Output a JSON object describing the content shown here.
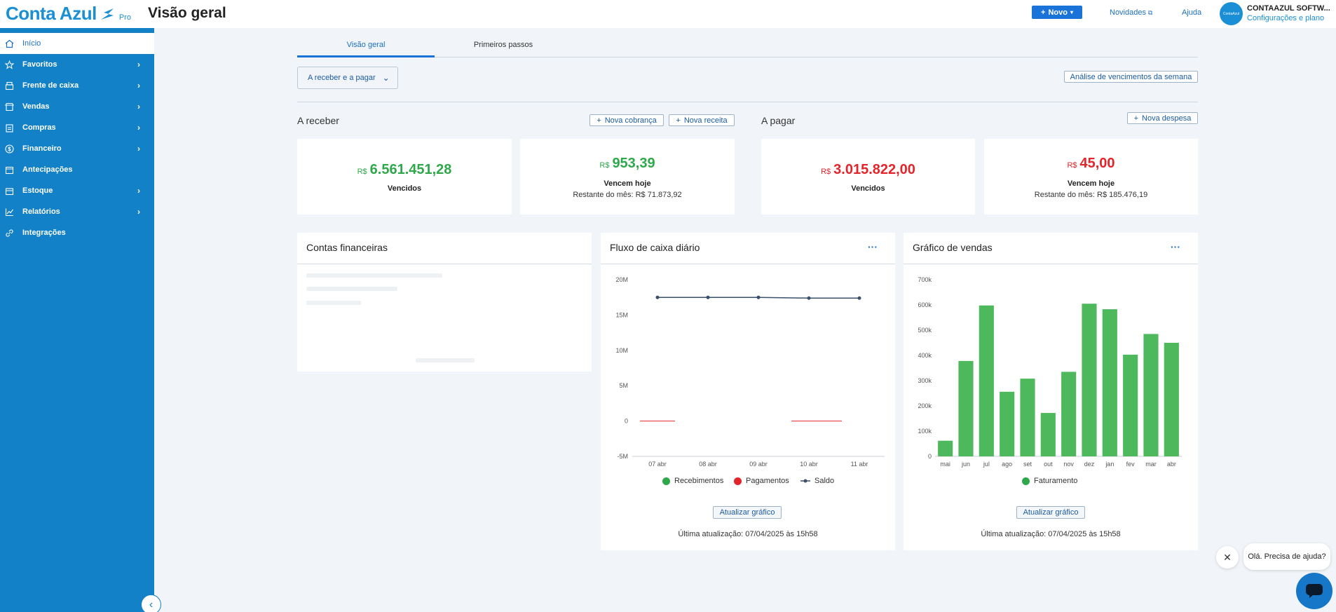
{
  "header": {
    "logo_text": "Conta Azul",
    "logo_badge": "Pro",
    "page_title": "Visão geral",
    "new_button": "Novo",
    "news_link": "Novidades",
    "help_link": "Ajuda",
    "avatar_text": "ContaAzul",
    "company_name": "CONTAAZUL SOFTW...",
    "company_settings": "Configurações e plano"
  },
  "sidebar": {
    "items": [
      {
        "label": "Início",
        "icon": "home-icon",
        "active": true
      },
      {
        "label": "Favoritos",
        "icon": "star-icon"
      },
      {
        "label": "Frente de caixa",
        "icon": "register-icon"
      },
      {
        "label": "Vendas",
        "icon": "store-icon"
      },
      {
        "label": "Compras",
        "icon": "clipboard-icon"
      },
      {
        "label": "Financeiro",
        "icon": "dollar-icon"
      },
      {
        "label": "Antecipações",
        "icon": "calendar-money-icon"
      },
      {
        "label": "Estoque",
        "icon": "box-icon"
      },
      {
        "label": "Relatórios",
        "icon": "chart-line-icon"
      },
      {
        "label": "Integrações",
        "icon": "link-icon"
      }
    ]
  },
  "tabs": [
    {
      "label": "Visão geral",
      "active": true
    },
    {
      "label": "Primeiros passos",
      "active": false
    }
  ],
  "filter": {
    "dropdown": "A receber e a pagar",
    "week_analysis": "Análise de vencimentos da semana"
  },
  "receivable": {
    "title": "A receber",
    "new_charge": "Nova cobrança",
    "new_revenue": "Nova receita",
    "overdue": {
      "currency": "R$",
      "amount": "6.561.451,28",
      "label": "Vencidos"
    },
    "today": {
      "currency": "R$",
      "amount": "953,39",
      "label": "Vencem hoje",
      "remaining": "Restante do mês: R$ 71.873,92"
    }
  },
  "payable": {
    "title": "A pagar",
    "new_expense": "Nova despesa",
    "overdue": {
      "currency": "R$",
      "amount": "3.015.822,00",
      "label": "Vencidos"
    },
    "today": {
      "currency": "R$",
      "amount": "45,00",
      "label": "Vencem hoje",
      "remaining": "Restante do mês: R$ 185.476,19"
    }
  },
  "accounts_panel": {
    "title": "Contas financeiras"
  },
  "cashflow_panel": {
    "title": "Fluxo de caixa diário",
    "more": "···",
    "legend": [
      "Recebimentos",
      "Pagamentos",
      "Saldo"
    ],
    "update_button": "Atualizar gráfico",
    "last_update": "Última atualização: 07/04/2025 às 15h58"
  },
  "sales_panel": {
    "title": "Gráfico de vendas",
    "more": "···",
    "legend": [
      "Faturamento"
    ],
    "update_button": "Atualizar gráfico",
    "last_update": "Última atualização: 07/04/2025 às 15h58"
  },
  "chat": {
    "message": "Olá. Precisa de ajuda?",
    "close": "✕"
  },
  "colors": {
    "brand": "#1381c8",
    "green": "#2ea84a",
    "red": "#e3242b",
    "saldo": "#3a4f6b"
  },
  "chart_data": [
    {
      "type": "line",
      "x": [
        "07 abr",
        "08 abr",
        "09 abr",
        "10 abr",
        "11 abr"
      ],
      "y_ticks": [
        "20M",
        "15M",
        "10M",
        "5M",
        "0",
        "-5M"
      ],
      "ylim": [
        -5,
        20
      ],
      "series": [
        {
          "name": "Recebimentos",
          "values": [
            0,
            0,
            0,
            0,
            0
          ]
        },
        {
          "name": "Pagamentos",
          "values": [
            0,
            null,
            null,
            0,
            0
          ]
        },
        {
          "name": "Saldo",
          "values": [
            17.5,
            17.5,
            17.5,
            17.4,
            17.4
          ]
        }
      ]
    },
    {
      "type": "bar",
      "categories": [
        "mai",
        "jun",
        "jul",
        "ago",
        "set",
        "out",
        "nov",
        "dez",
        "jan",
        "fev",
        "mar",
        "abr"
      ],
      "y_ticks": [
        "700k",
        "600k",
        "500k",
        "400k",
        "300k",
        "200k",
        "100k",
        "0"
      ],
      "ylim": [
        0,
        700
      ],
      "series": [
        {
          "name": "Faturamento",
          "values": [
            62,
            378,
            598,
            256,
            308,
            172,
            335,
            605,
            583,
            403,
            485,
            450
          ]
        }
      ]
    }
  ]
}
